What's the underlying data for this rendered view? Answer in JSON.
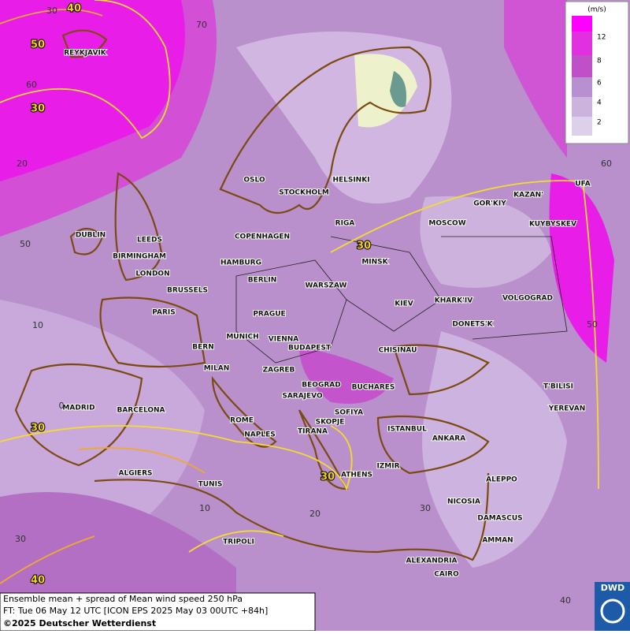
{
  "map": {
    "legend": {
      "unit": "(m/s)",
      "levels": [
        "12",
        "8",
        "6",
        "4",
        "2"
      ]
    },
    "cities": [
      "REYKJAVIK",
      "OSLO",
      "STOCKHOLM",
      "HELSINKI",
      "RIGA",
      "MOSCOW",
      "GOR'KIY",
      "KAZAN'",
      "UFA",
      "KUYBYSKEV",
      "DUBLIN",
      "LEEDS",
      "BIRMINGHAM",
      "LONDON",
      "COPENHAGEN",
      "HAMBURG",
      "BERLIN",
      "MINSK",
      "WARSZAW",
      "BRUSSELS",
      "KIEV",
      "KHARK'IV",
      "VOLGOGRAD",
      "PARIS",
      "PRAGUE",
      "DONETS'K",
      "MUNICH",
      "VIENNA",
      "BERN",
      "BUDAPEST",
      "CHISINAU",
      "MILAN",
      "ZAGREB",
      "BEOGRAD",
      "BUCHARES",
      "T'BILISI",
      "SARAJEVO",
      "MADRID",
      "BARCELONA",
      "SOFIYA",
      "YEREVAN",
      "ROME",
      "SKOPJE",
      "ISTANBUL",
      "NAPLES",
      "TIRANA",
      "ANKARA",
      "ALGIERS",
      "ATHENS",
      "IZMIR",
      "TUNIS",
      "ALEPPO",
      "NICOSIA",
      "DAMASCUS",
      "TRIPOLI",
      "AMMAN",
      "ALEXANDRIA",
      "CAIRO"
    ],
    "contour_labels": [
      "40",
      "50",
      "30",
      "30",
      "30",
      "30",
      "40"
    ],
    "grid_labels": [
      "30",
      "70",
      "60",
      "20",
      "50",
      "10",
      "0",
      "10",
      "20",
      "30",
      "40",
      "30",
      "60",
      "50"
    ],
    "footer": {
      "line1": "Ensemble mean + spread of Mean wind speed 250 hPa",
      "line2": "FT: Tue 06 May 12 UTC [ICON EPS 2025 May 03 00UTC +84h]",
      "line3": "©2025 Deutscher Wetterdienst"
    },
    "logo": "DWD"
  }
}
